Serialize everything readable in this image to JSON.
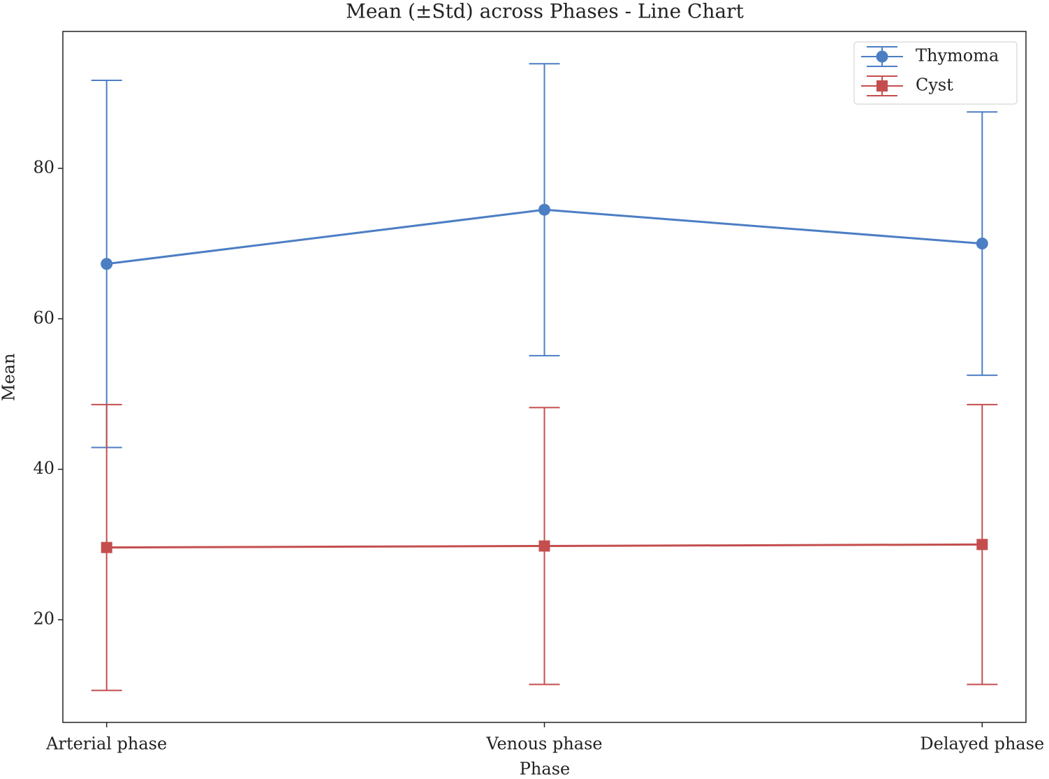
{
  "chart_data": {
    "type": "line",
    "title": "Mean (±Std) across Phases - Line Chart",
    "x_label": "Phase",
    "y_label": "Mean",
    "categories": [
      "Arterial phase",
      "Venous phase",
      "Delayed phase"
    ],
    "series": [
      {
        "name": "Thymoma",
        "color": "#4c7ec4",
        "marker": "circle",
        "values": [
          67.3,
          74.5,
          70.0
        ],
        "errors": [
          24.4,
          19.4,
          17.5
        ]
      },
      {
        "name": "Cyst",
        "color": "#c44e4e",
        "marker": "square",
        "values": [
          29.6,
          29.8,
          30.0
        ],
        "errors": [
          19.0,
          18.4,
          18.6
        ]
      }
    ],
    "ylim": [
      6.35,
      98.2
    ],
    "yticks": [
      20,
      40,
      60,
      80
    ],
    "grid": false,
    "legend": "upper right"
  }
}
